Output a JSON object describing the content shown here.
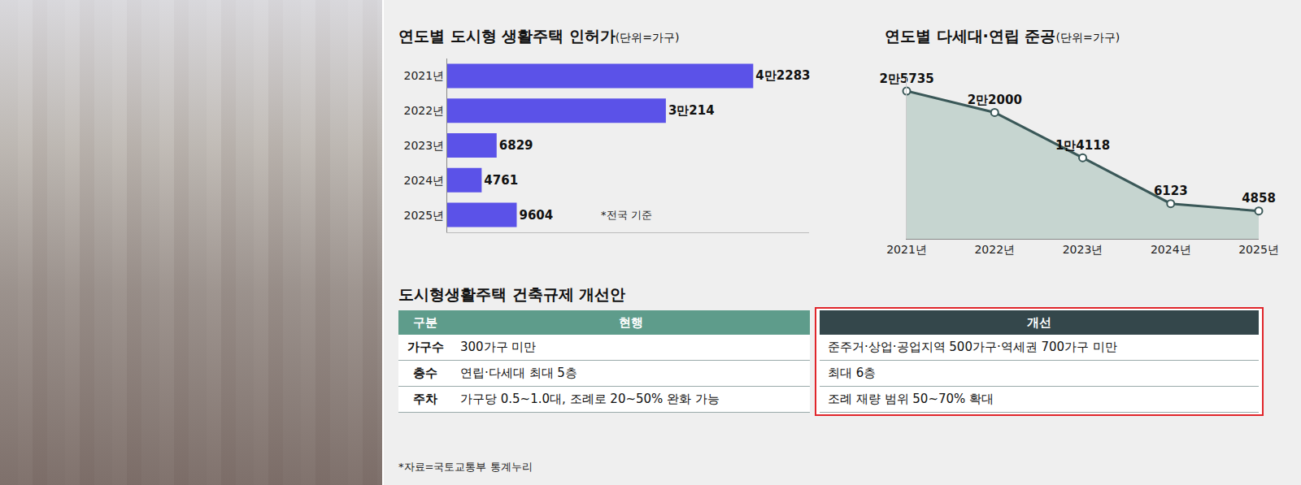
{
  "chart_data": [
    {
      "type": "bar",
      "orientation": "horizontal",
      "title": "연도별 도시형 생활주택 인허가",
      "subtitle": "(단위=가구)",
      "categories": [
        "2021년",
        "2022년",
        "2023년",
        "2024년",
        "2025년"
      ],
      "values": [
        42283,
        30214,
        6829,
        4761,
        9604
      ],
      "value_labels": [
        "4만2283",
        "3만214",
        "6829",
        "4761",
        "9604"
      ],
      "data_labels": true,
      "color": "#5b52e8",
      "xlim": [
        0,
        50000
      ],
      "xticks": [],
      "tick_labels": "y",
      "grid": false,
      "annotations": [
        "*전국 기준"
      ]
    },
    {
      "type": "area",
      "title": "연도별 다세대·연립 준공",
      "subtitle": "(단위=가구)",
      "categories": [
        "2021년",
        "2022년",
        "2023년",
        "2024년",
        "2025년"
      ],
      "values": [
        25735,
        22000,
        14118,
        6123,
        4858
      ],
      "value_labels": [
        "2만5735",
        "2만2000",
        "1만4118",
        "6123",
        "4858"
      ],
      "data_labels": true,
      "color": "#3a5858",
      "marker": "circle",
      "ylim": [
        0,
        28000
      ],
      "yticks": [],
      "tick_labels": "x",
      "grid": false
    }
  ],
  "table": {
    "title": "도시형생활주택 건축규제 개선안",
    "header": [
      "구분",
      "현행",
      "개선"
    ],
    "rows": [
      [
        "가구수",
        "300가구 미만",
        "준주거·상업·공업지역 500가구·역세권 700가구 미만"
      ],
      [
        "층수",
        "연립·다세대 최대 5층",
        "최대 6층"
      ],
      [
        "주차",
        "가구당 0.5~1.0대, 조례로 20~50% 완화 가능",
        "조례 재량 범위 50~70% 확대"
      ]
    ]
  },
  "source": "*자료=국토교통부 통계누리"
}
